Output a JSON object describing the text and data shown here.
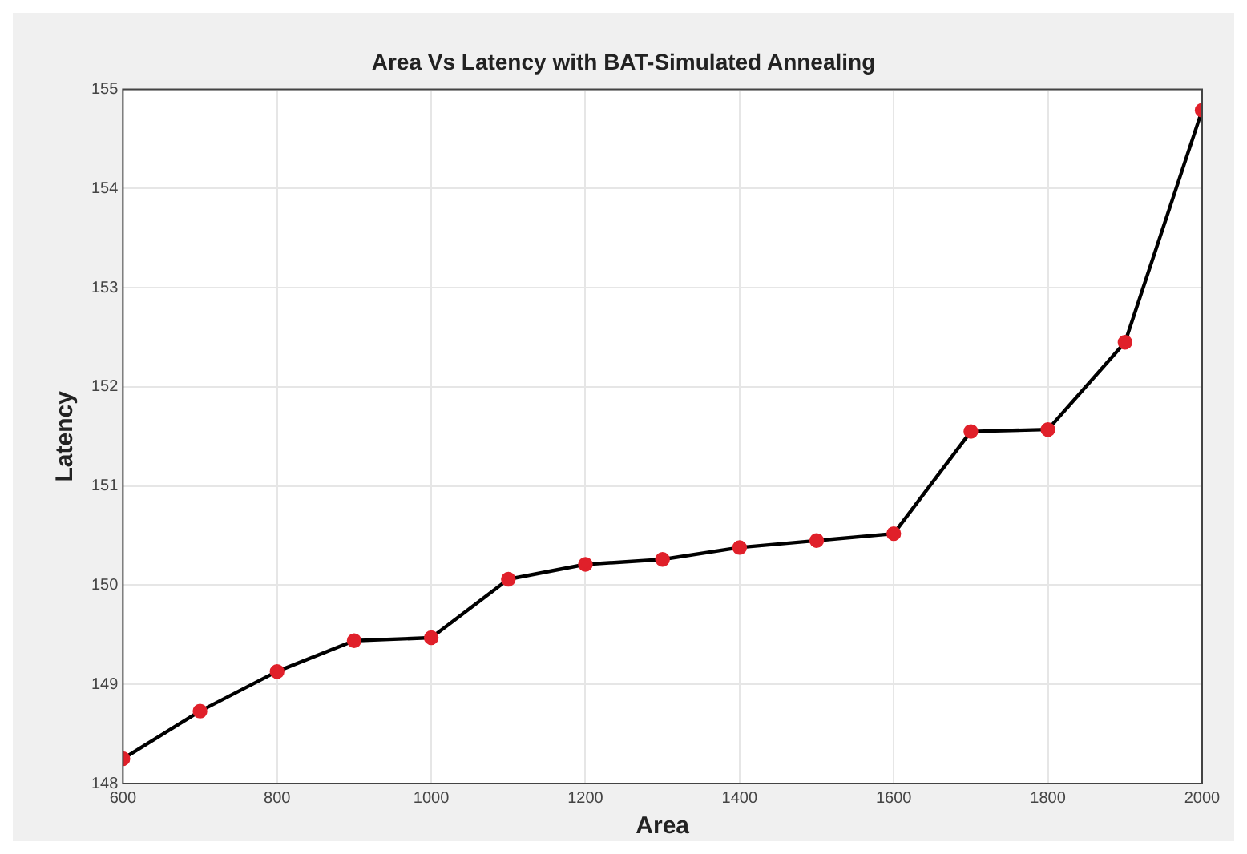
{
  "chart_data": {
    "type": "line",
    "title": "Area Vs Latency with BAT-Simulated Annealing",
    "xlabel": "Area",
    "ylabel": "Latency",
    "x": [
      600,
      700,
      800,
      900,
      1000,
      1100,
      1200,
      1300,
      1400,
      1500,
      1600,
      1700,
      1800,
      1900,
      2000
    ],
    "series": [
      {
        "color": "#000000",
        "colors": [
          "#e0202a",
          "#e0202a",
          "#e0202a",
          "#e0202a",
          "#e0202a",
          "#e0202a",
          "#e0202a",
          "#e0202a",
          "#e0202a",
          "#e0202a",
          "#e0202a",
          "#e0202a",
          "#e0202a",
          "#e0202a",
          "#e0202a"
        ],
        "values": [
          148.25,
          148.73,
          149.13,
          149.44,
          149.47,
          150.06,
          150.21,
          150.26,
          150.38,
          150.45,
          150.52,
          151.55,
          151.57,
          152.45,
          154.79
        ]
      }
    ],
    "xlim": [
      600,
      2000
    ],
    "xticks": [
      600,
      800,
      1000,
      1200,
      1400,
      1600,
      1800,
      2000
    ],
    "ylim": [
      148,
      155
    ],
    "yticks": [
      148,
      149,
      150,
      151,
      152,
      153,
      154,
      155
    ],
    "grid": true,
    "legend": false,
    "marker": "circle",
    "line_style": "solid"
  }
}
